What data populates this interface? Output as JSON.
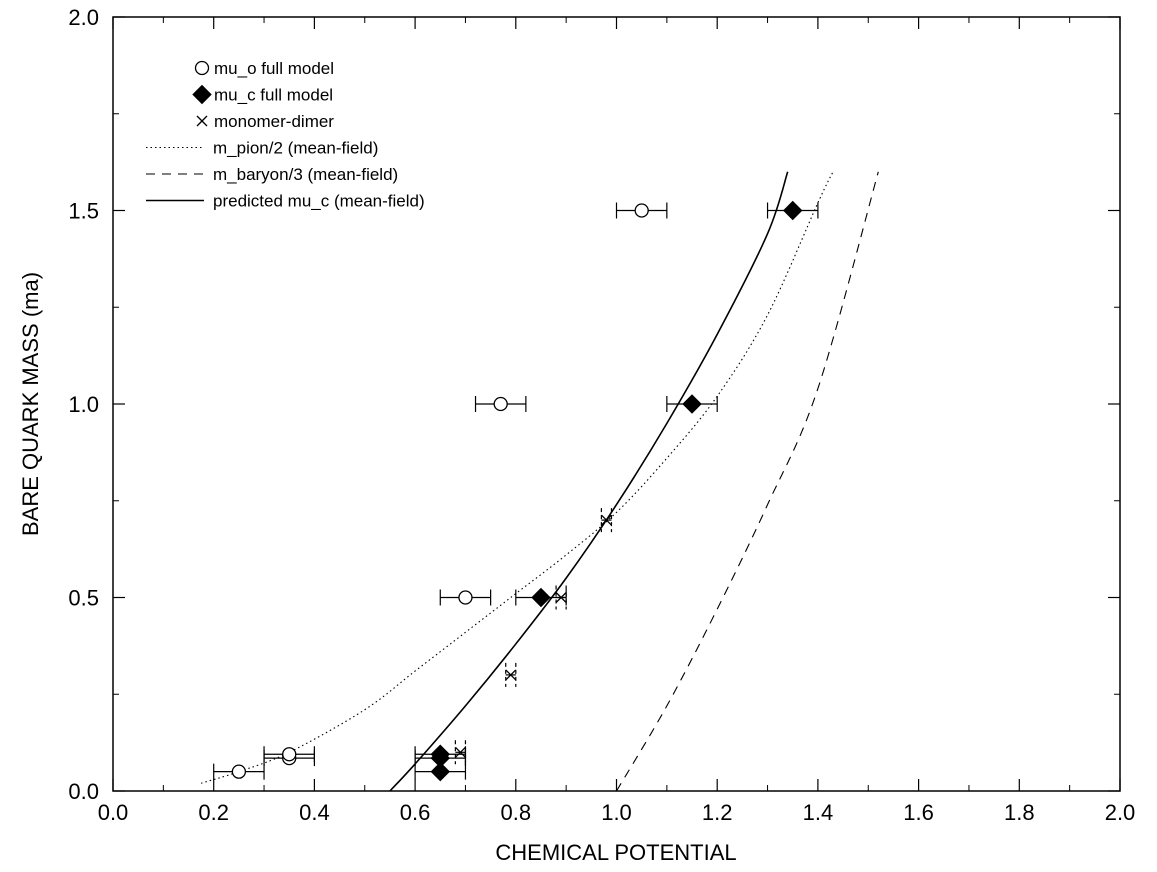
{
  "chart_data": {
    "type": "scatter",
    "xlabel": "CHEMICAL POTENTIAL",
    "ylabel": "BARE QUARK MASS (ma)",
    "xlim": [
      0.0,
      2.0
    ],
    "ylim": [
      0.0,
      2.0
    ],
    "x_ticks": [
      "0.0",
      "0.2",
      "0.4",
      "0.6",
      "0.8",
      "1.0",
      "1.2",
      "1.4",
      "1.6",
      "1.8",
      "2.0"
    ],
    "y_ticks": [
      "0.0",
      "0.5",
      "1.0",
      "1.5",
      "2.0"
    ],
    "legend_position": "top-left",
    "series": [
      {
        "name": "mu_o full model",
        "marker": "open-circle",
        "points": [
          {
            "x": 0.25,
            "y": 0.05,
            "xerr": 0.05
          },
          {
            "x": 0.35,
            "y": 0.085,
            "xerr": 0.05
          },
          {
            "x": 0.35,
            "y": 0.095,
            "xerr": 0.05
          },
          {
            "x": 0.7,
            "y": 0.5,
            "xerr": 0.05
          },
          {
            "x": 0.77,
            "y": 1.0,
            "xerr": 0.05
          },
          {
            "x": 1.05,
            "y": 1.5,
            "xerr": 0.05
          }
        ]
      },
      {
        "name": "mu_c full model",
        "marker": "filled-diamond",
        "points": [
          {
            "x": 0.65,
            "y": 0.05,
            "xerr": 0.05
          },
          {
            "x": 0.65,
            "y": 0.085,
            "xerr": 0.05
          },
          {
            "x": 0.65,
            "y": 0.095,
            "xerr": 0.05
          },
          {
            "x": 0.85,
            "y": 0.5,
            "xerr": 0.05
          },
          {
            "x": 1.15,
            "y": 1.0,
            "xerr": 0.05
          },
          {
            "x": 1.35,
            "y": 1.5,
            "xerr": 0.05
          }
        ]
      },
      {
        "name": "monomer-dimer",
        "marker": "cross",
        "points": [
          {
            "x": 0.69,
            "y": 0.1,
            "xerr": 0.01
          },
          {
            "x": 0.79,
            "y": 0.3,
            "xerr": 0.01
          },
          {
            "x": 0.89,
            "y": 0.5,
            "xerr": 0.01
          },
          {
            "x": 0.98,
            "y": 0.7,
            "xerr": 0.01
          }
        ]
      },
      {
        "name": "m_pion/2 (mean-field)",
        "line": "dotted",
        "points": [
          {
            "x": 0.175,
            "y": 0.02
          },
          {
            "x": 0.25,
            "y": 0.05
          },
          {
            "x": 0.35,
            "y": 0.1
          },
          {
            "x": 0.5,
            "y": 0.21
          },
          {
            "x": 0.6,
            "y": 0.31
          },
          {
            "x": 0.7,
            "y": 0.41
          },
          {
            "x": 0.8,
            "y": 0.51
          },
          {
            "x": 0.9,
            "y": 0.61
          },
          {
            "x": 1.0,
            "y": 0.72
          },
          {
            "x": 1.1,
            "y": 0.86
          },
          {
            "x": 1.2,
            "y": 1.02
          },
          {
            "x": 1.3,
            "y": 1.23
          },
          {
            "x": 1.4,
            "y": 1.52
          },
          {
            "x": 1.43,
            "y": 1.6
          }
        ]
      },
      {
        "name": "m_baryon/3 (mean-field)",
        "line": "dashed",
        "points": [
          {
            "x": 1.0,
            "y": 0.0
          },
          {
            "x": 1.1,
            "y": 0.22
          },
          {
            "x": 1.2,
            "y": 0.47
          },
          {
            "x": 1.3,
            "y": 0.74
          },
          {
            "x": 1.4,
            "y": 1.04
          },
          {
            "x": 1.52,
            "y": 1.6
          }
        ]
      },
      {
        "name": "predicted mu_c (mean-field)",
        "line": "solid",
        "points": [
          {
            "x": 0.55,
            "y": 0.0
          },
          {
            "x": 0.6,
            "y": 0.07
          },
          {
            "x": 0.7,
            "y": 0.22
          },
          {
            "x": 0.8,
            "y": 0.38
          },
          {
            "x": 0.9,
            "y": 0.55
          },
          {
            "x": 1.0,
            "y": 0.74
          },
          {
            "x": 1.1,
            "y": 0.95
          },
          {
            "x": 1.2,
            "y": 1.18
          },
          {
            "x": 1.3,
            "y": 1.44
          },
          {
            "x": 1.34,
            "y": 1.6
          }
        ]
      }
    ]
  }
}
